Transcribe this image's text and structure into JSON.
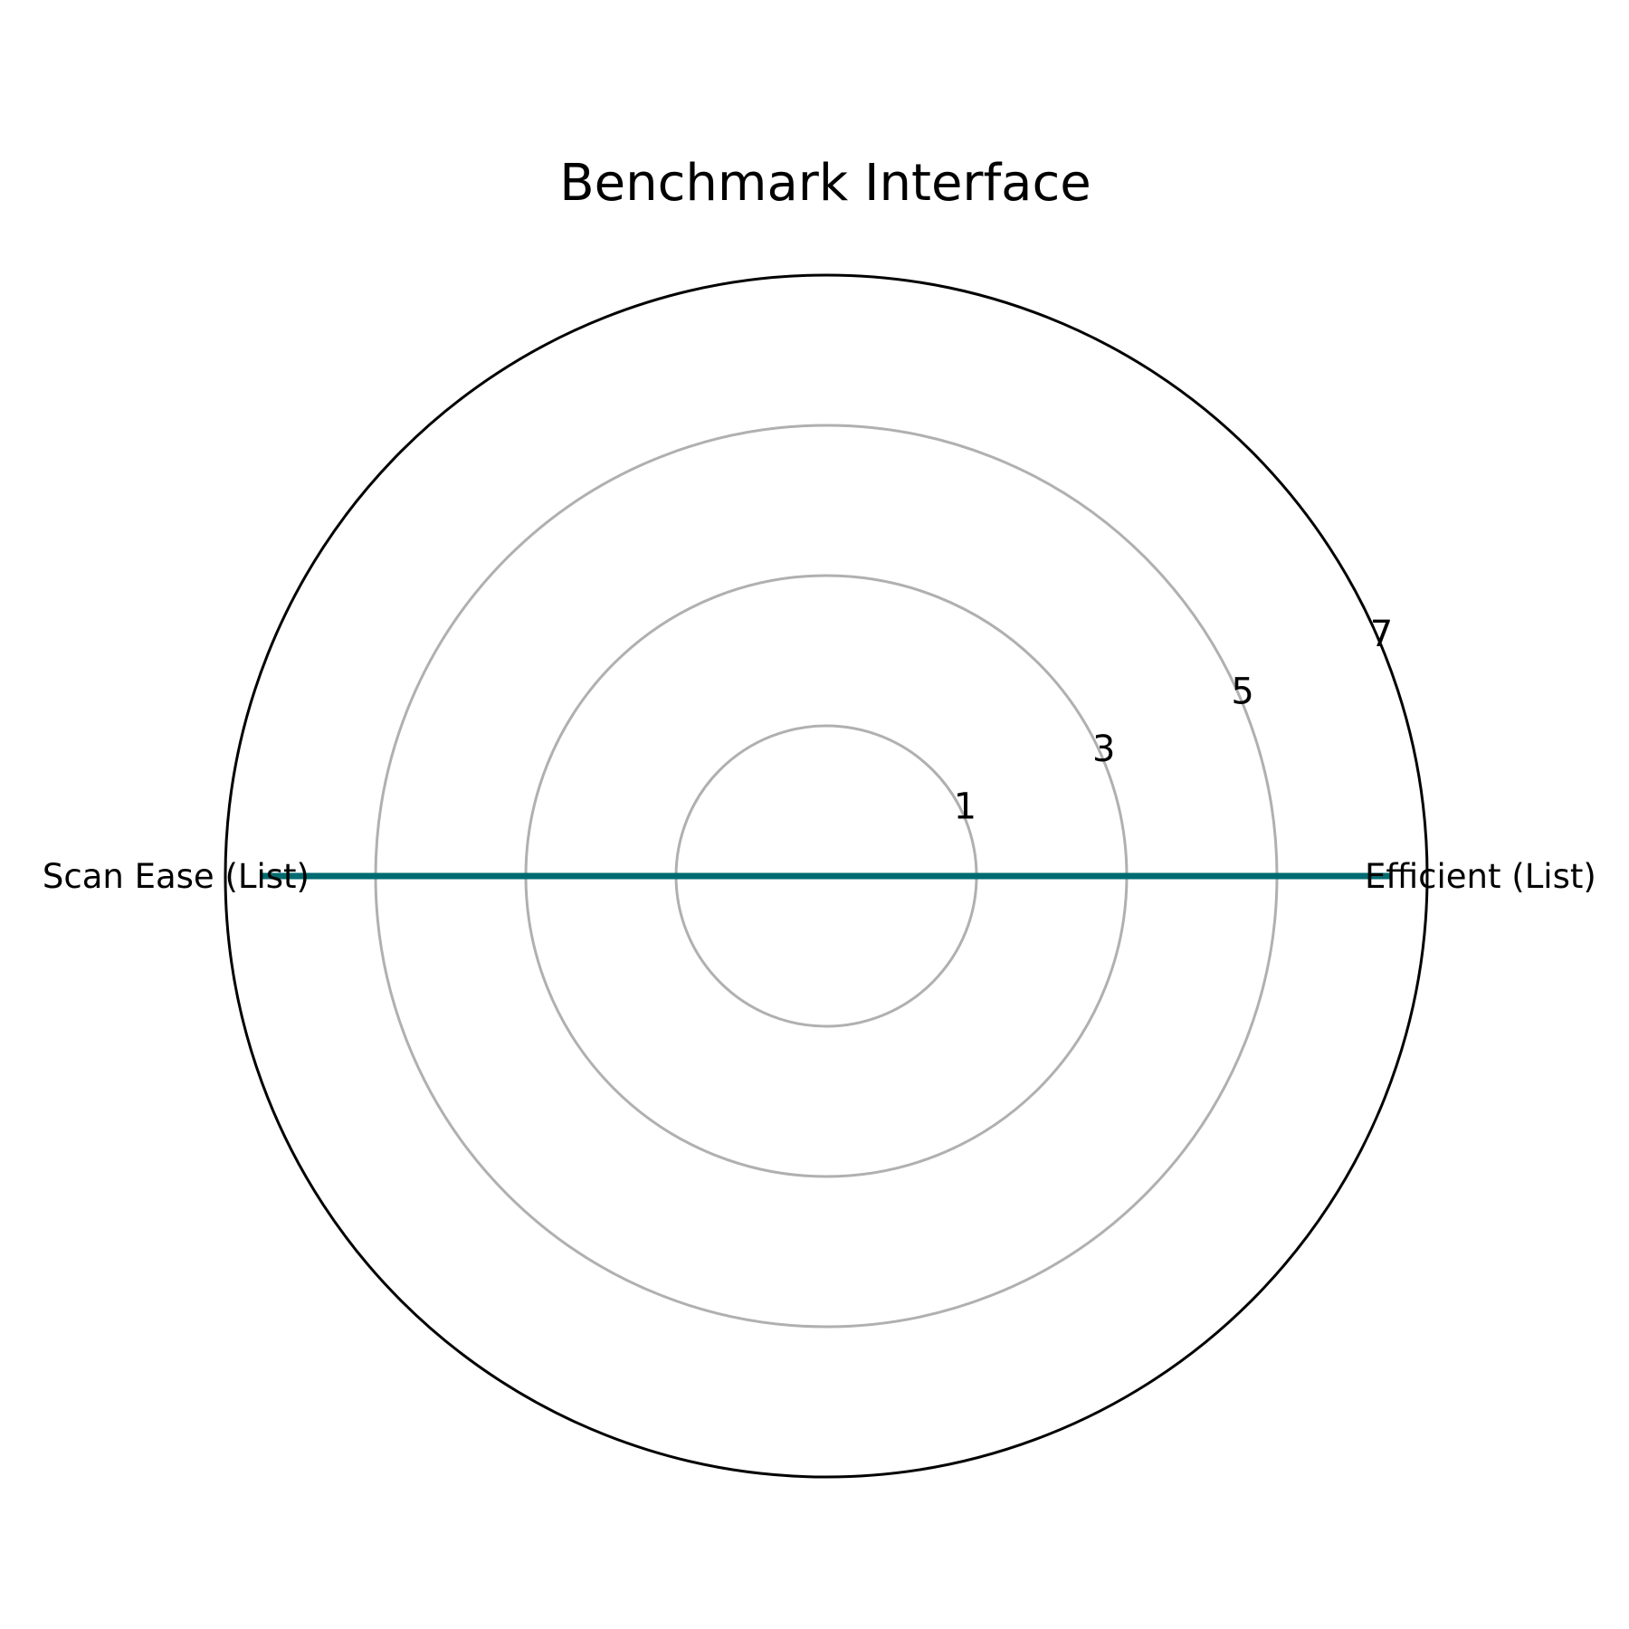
{
  "chart_data": {
    "type": "radar",
    "title": "Benchmark Interface",
    "categories": [
      "Efficient (List)",
      "Scan Ease (List)"
    ],
    "series": [
      {
        "values": [
          6.5,
          6.5
        ]
      }
    ],
    "rlim": [
      -1,
      7
    ],
    "rticks": [
      1,
      3,
      5,
      7
    ],
    "rtick_labels": [
      "1",
      "3",
      "5",
      "7"
    ],
    "grid": true,
    "legend": "none",
    "colors": {
      "series": "#006b70",
      "grid": "#b0b0b0",
      "frame": "#000000"
    }
  }
}
